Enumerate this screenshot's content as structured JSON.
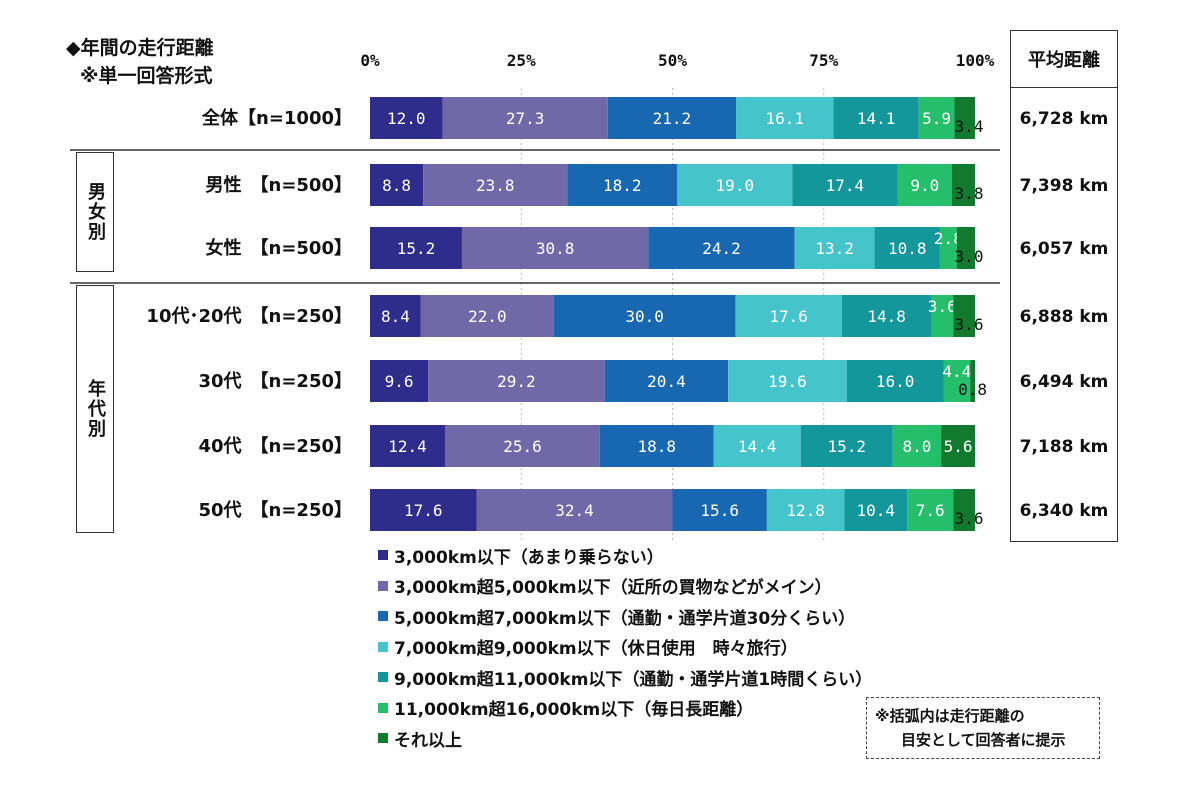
{
  "title": {
    "line1": "◆年間の走行距離",
    "line2": "※単一回答形式"
  },
  "avg_header": "平均距離",
  "groups": [
    {
      "label": "男女別"
    },
    {
      "label": "年代別"
    }
  ],
  "note": {
    "line1": "※括弧内は走行距離の",
    "line2": "目安として回答者に提示"
  },
  "chart_data": {
    "type": "bar",
    "orientation": "horizontal",
    "stacked": true,
    "normalized_percent": true,
    "xlim": [
      0,
      100
    ],
    "x_ticks": [
      "0%",
      "25%",
      "50%",
      "75%",
      "100%"
    ],
    "grid": "dotted vertical lines",
    "legend_position": "bottom",
    "categories": [
      "全体【n=1000】",
      "男性　【n=500】",
      "女性　【n=500】",
      "10代･20代　【n=250】",
      "30代　【n=250】",
      "40代　【n=250】",
      "50代　【n=250】"
    ],
    "series": [
      {
        "name": "3,000km以下（あまり乗らない）",
        "color": "#2e2d8c",
        "values": [
          12.0,
          8.8,
          15.2,
          8.4,
          9.6,
          12.4,
          17.6
        ]
      },
      {
        "name": "3,000km超5,000km以下（近所の買物などがメイン）",
        "color": "#7168a8",
        "values": [
          27.3,
          23.8,
          30.8,
          22.0,
          29.2,
          25.6,
          32.4
        ]
      },
      {
        "name": "5,000km超7,000km以下（通勤・通学片道30分くらい）",
        "color": "#1768b0",
        "values": [
          21.2,
          18.2,
          24.2,
          30.0,
          20.4,
          18.8,
          15.6
        ]
      },
      {
        "name": "7,000km超9,000km以下（休日使用　時々旅行）",
        "color": "#45c4cc",
        "values": [
          16.1,
          19.0,
          13.2,
          17.6,
          19.6,
          14.4,
          12.8
        ]
      },
      {
        "name": "9,000km超11,000km以下（通勤・通学片道1時間くらい）",
        "color": "#14979a",
        "values": [
          14.1,
          17.4,
          10.8,
          14.8,
          16.0,
          15.2,
          10.4
        ]
      },
      {
        "name": "11,000km超16,000km以下（毎日長距離）",
        "color": "#25be6a",
        "values": [
          5.9,
          9.0,
          2.8,
          3.6,
          4.4,
          8.0,
          7.6
        ]
      },
      {
        "name": "それ以上",
        "color": "#127a2e",
        "values": [
          3.4,
          3.8,
          3.0,
          3.6,
          0.8,
          5.6,
          3.6
        ]
      }
    ],
    "average_distance": [
      "6,728 km",
      "7,398 km",
      "6,057 km",
      "6,888 km",
      "6,494 km",
      "7,188 km",
      "6,340 km"
    ]
  }
}
